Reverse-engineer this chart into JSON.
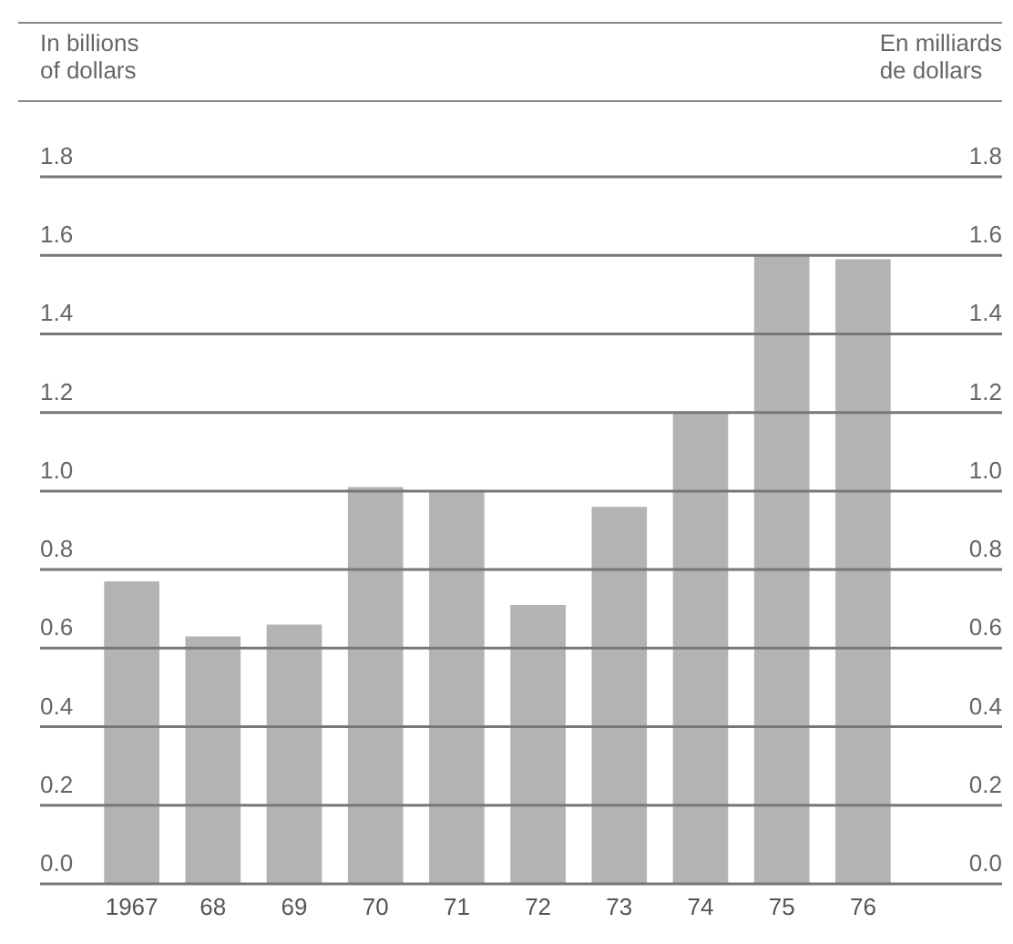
{
  "chart_data": {
    "type": "bar",
    "ylabel": "In billions\nof dollars",
    "y2label": "En milliards\nde dollars",
    "categories": [
      "1967",
      "68",
      "69",
      "70",
      "71",
      "72",
      "73",
      "74",
      "75",
      "76"
    ],
    "values": [
      0.77,
      0.63,
      0.66,
      1.01,
      1.0,
      0.71,
      0.96,
      1.2,
      1.6,
      1.59
    ],
    "color": "#b3b3b3",
    "ylim": [
      0,
      1.8
    ],
    "yticks": [
      {
        "value": 0,
        "label": "0.0"
      },
      0.2,
      0.4,
      0.6,
      0.8,
      {
        "value": 1,
        "label": "1.0"
      },
      1.2,
      1.4,
      1.6,
      1.8
    ],
    "y2lim": [
      0,
      1.8
    ],
    "y2ticks": [
      {
        "value": 0,
        "label": "0.0"
      },
      0.2,
      0.4,
      0.6,
      0.8,
      {
        "value": 1,
        "label": "1.0"
      },
      1.2,
      1.4,
      1.6,
      1.8
    ],
    "grid": "y"
  }
}
